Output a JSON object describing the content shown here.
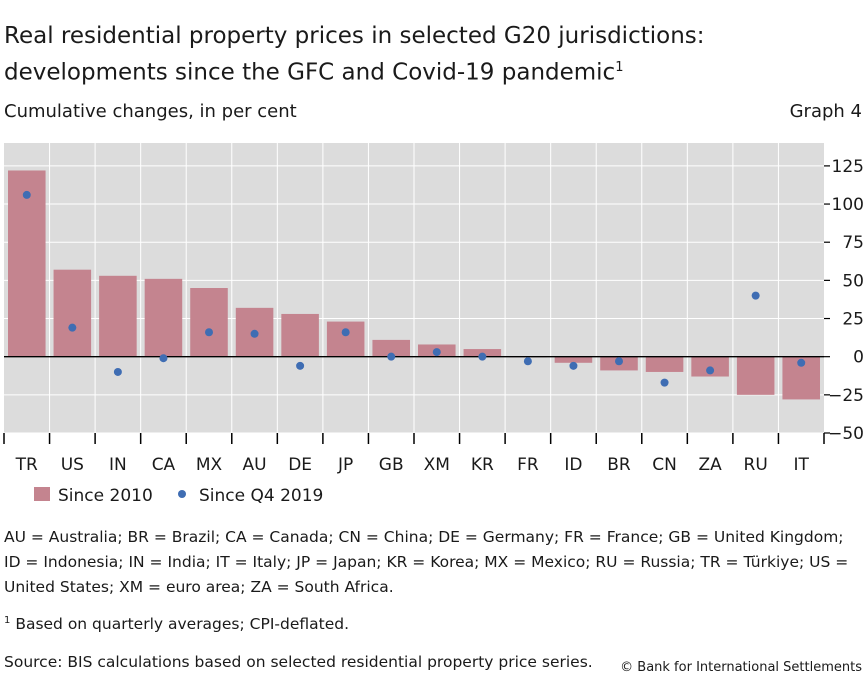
{
  "header": {
    "title_line1": "Real residential property prices in selected G20 jurisdictions:",
    "title_line2": "developments since the GFC and Covid-19 pandemic",
    "title_footnote_mark": "1",
    "subtitle": "Cumulative changes, in per cent",
    "graph_number": "Graph 4"
  },
  "chart_data": {
    "type": "bar",
    "categories": [
      "TR",
      "US",
      "IN",
      "CA",
      "MX",
      "AU",
      "DE",
      "JP",
      "GB",
      "XM",
      "KR",
      "FR",
      "ID",
      "BR",
      "CN",
      "ZA",
      "RU",
      "IT"
    ],
    "series": [
      {
        "name": "Since 2010",
        "kind": "bar",
        "color": "#c4848f",
        "values": [
          122,
          57,
          53,
          51,
          45,
          32,
          28,
          23,
          11,
          8,
          5,
          0,
          -4,
          -9,
          -10,
          -13,
          -25,
          -28
        ]
      },
      {
        "name": "Since Q4 2019",
        "kind": "scatter",
        "color": "#3f6db3",
        "values": [
          106,
          19,
          -10,
          -1,
          16,
          15,
          -6,
          16,
          0,
          3,
          0,
          -3,
          -6,
          -3,
          -17,
          -9,
          40,
          -4
        ]
      }
    ],
    "y_ticks": [
      125,
      100,
      75,
      50,
      25,
      0,
      -25,
      -50
    ],
    "y_tick_labels": [
      "125",
      "100",
      "75",
      "50",
      "25",
      "0",
      "−25",
      "−50"
    ],
    "ylim": [
      -50,
      140
    ],
    "y_axis_side": "right",
    "grid": true,
    "legend_position": "bottom-left",
    "plot_background": "#dcdcdc",
    "grid_color": "#ffffff"
  },
  "footer": {
    "abbreviations": "AU = Australia; BR = Brazil; CA = Canada; CN = China; DE = Germany; FR = France; GB = United Kingdom; ID = Indonesia; IN = India; IT = Italy; JP = Japan; KR = Korea; MX = Mexico; RU = Russia; TR = Türkiye; US = United States; XM = euro area; ZA = South Africa.",
    "footnote_mark": "1",
    "footnote_text": "Based on quarterly averages; CPI-deflated.",
    "source": "Source: BIS calculations based on selected residential property price series.",
    "copyright": "© Bank for International Settlements"
  }
}
